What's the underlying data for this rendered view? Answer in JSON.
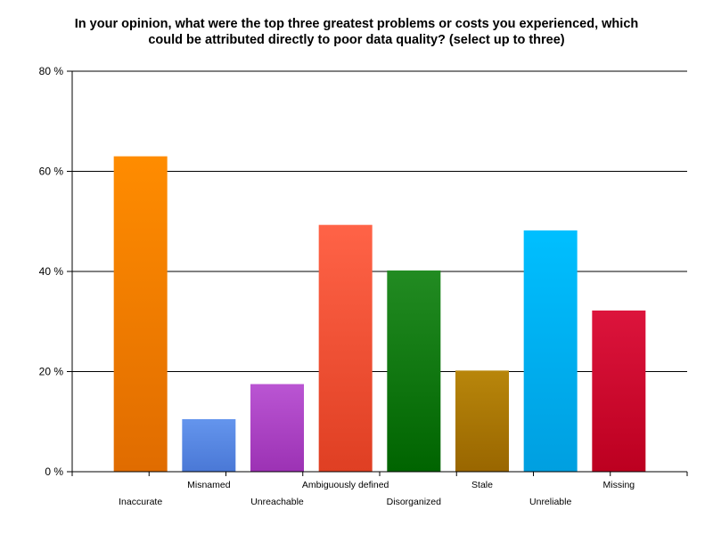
{
  "chart_data": {
    "type": "bar",
    "title_lines": [
      "In your opinion, what were the top three greatest problems or costs you experienced, which",
      "could be attributed directly to poor data quality? (select up to three)"
    ],
    "categories": [
      "Inaccurate",
      "Misnamed",
      "Unreachable",
      "Ambiguously defined",
      "Disorganized",
      "Stale",
      "Unreliable",
      "Missing"
    ],
    "values": [
      63,
      10.5,
      17.5,
      49.3,
      40.2,
      20.2,
      48.2,
      32.2
    ],
    "colors_top": [
      "#ff8c00",
      "#6495ed",
      "#ba55d3",
      "#ff6347",
      "#228b22",
      "#b8860b",
      "#00bfff",
      "#dc143c"
    ],
    "colors_bottom": [
      "#e06c00",
      "#4a78d6",
      "#9c32b4",
      "#df3f23",
      "#006400",
      "#996600",
      "#009fe0",
      "#bc0020"
    ],
    "ylim": [
      0,
      80
    ],
    "yticks": [
      0,
      20,
      40,
      60,
      80
    ],
    "ytick_labels": [
      "0 %",
      "20 %",
      "40 %",
      "60 %",
      "80 %"
    ],
    "grid": true,
    "xlabel": "",
    "ylabel": ""
  }
}
